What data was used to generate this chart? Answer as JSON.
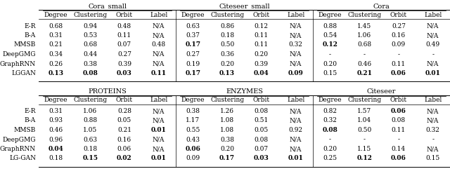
{
  "top_sections": [
    "Cora_small",
    "Citeseer_small",
    "Cora"
  ],
  "bottom_sections": [
    "PROTEINS",
    "ENZYMES",
    "Citeseer"
  ],
  "col_headers": [
    "Degree",
    "Clustering",
    "Orbit",
    "Label"
  ],
  "row_labels": [
    "E-R",
    "B-A",
    "MMSB",
    "DeepGMG",
    "GraphRNN",
    "LGGAN"
  ],
  "row_labels_bottom": [
    "E-R",
    "B-A",
    "MMSB",
    "DeepGMG",
    "GraphRNN",
    "LG-GAN"
  ],
  "top_data": [
    [
      [
        "0.68",
        "0.94",
        "0.48",
        "N/A"
      ],
      [
        "0.31",
        "0.53",
        "0.11",
        "N/A"
      ],
      [
        "0.21",
        "0.68",
        "0.07",
        "0.48"
      ],
      [
        "0.34",
        "0.44",
        "0.27",
        "N/A"
      ],
      [
        "0.26",
        "0.38",
        "0.39",
        "N/A"
      ],
      [
        "0.13",
        "0.08",
        "0.03",
        "0.11"
      ]
    ],
    [
      [
        "0.63",
        "0.86",
        "0.12",
        "N/A"
      ],
      [
        "0.37",
        "0.18",
        "0.11",
        "N/A"
      ],
      [
        "0.17",
        "0.50",
        "0.11",
        "0.32"
      ],
      [
        "0.27",
        "0.36",
        "0.20",
        "N/A"
      ],
      [
        "0.19",
        "0.20",
        "0.39",
        "N/A"
      ],
      [
        "0.17",
        "0.13",
        "0.04",
        "0.09"
      ]
    ],
    [
      [
        "0.88",
        "1.45",
        "0.27",
        "N/A"
      ],
      [
        "0.54",
        "1.06",
        "0.16",
        "N/A"
      ],
      [
        "0.12",
        "0.68",
        "0.09",
        "0.49"
      ],
      [
        "-",
        "-",
        "-",
        "-"
      ],
      [
        "0.20",
        "0.46",
        "0.11",
        "N/A"
      ],
      [
        "0.15",
        "0.21",
        "0.06",
        "0.01"
      ]
    ]
  ],
  "bottom_data": [
    [
      [
        "0.31",
        "1.06",
        "0.28",
        "N/A"
      ],
      [
        "0.93",
        "0.88",
        "0.05",
        "N/A"
      ],
      [
        "0.46",
        "1.05",
        "0.21",
        "0.01"
      ],
      [
        "0.96",
        "0.63",
        "0.16",
        "N/A"
      ],
      [
        "0.04",
        "0.18",
        "0.06",
        "N/A"
      ],
      [
        "0.18",
        "0.15",
        "0.02",
        "0.01"
      ]
    ],
    [
      [
        "0.38",
        "1.26",
        "0.08",
        "N/A"
      ],
      [
        "1.17",
        "1.08",
        "0.51",
        "N/A"
      ],
      [
        "0.55",
        "1.08",
        "0.05",
        "0.92"
      ],
      [
        "0.43",
        "0.38",
        "0.08",
        "N/A"
      ],
      [
        "0.06",
        "0.20",
        "0.07",
        "N/A"
      ],
      [
        "0.09",
        "0.17",
        "0.03",
        "0.01"
      ]
    ],
    [
      [
        "0.82",
        "1.57",
        "0.06",
        "N/A"
      ],
      [
        "0.32",
        "1.04",
        "0.08",
        "N/A"
      ],
      [
        "0.08",
        "0.50",
        "0.11",
        "0.32"
      ],
      [
        "-",
        "-",
        "-",
        "-"
      ],
      [
        "0.20",
        "1.15",
        "0.14",
        "N/A"
      ],
      [
        "0.25",
        "0.12",
        "0.06",
        "0.15"
      ]
    ]
  ],
  "top_bold": [
    [
      [
        false,
        false,
        false,
        false
      ],
      [
        false,
        false,
        false,
        false
      ],
      [
        false,
        false,
        false,
        false
      ],
      [
        false,
        false,
        false,
        false
      ],
      [
        false,
        false,
        false,
        false
      ],
      [
        true,
        true,
        true,
        true
      ]
    ],
    [
      [
        false,
        false,
        false,
        false
      ],
      [
        false,
        false,
        false,
        false
      ],
      [
        true,
        false,
        false,
        false
      ],
      [
        false,
        false,
        false,
        false
      ],
      [
        false,
        false,
        false,
        false
      ],
      [
        true,
        true,
        true,
        true
      ]
    ],
    [
      [
        false,
        false,
        false,
        false
      ],
      [
        false,
        false,
        false,
        false
      ],
      [
        true,
        false,
        false,
        false
      ],
      [
        false,
        false,
        false,
        false
      ],
      [
        false,
        false,
        false,
        false
      ],
      [
        false,
        true,
        true,
        true
      ]
    ]
  ],
  "bottom_bold": [
    [
      [
        false,
        false,
        false,
        false
      ],
      [
        false,
        false,
        false,
        false
      ],
      [
        false,
        false,
        false,
        true
      ],
      [
        false,
        false,
        false,
        false
      ],
      [
        true,
        false,
        false,
        false
      ],
      [
        false,
        true,
        true,
        true
      ]
    ],
    [
      [
        false,
        false,
        false,
        false
      ],
      [
        false,
        false,
        false,
        false
      ],
      [
        false,
        false,
        false,
        false
      ],
      [
        false,
        false,
        false,
        false
      ],
      [
        true,
        false,
        false,
        false
      ],
      [
        false,
        true,
        true,
        true
      ]
    ],
    [
      [
        false,
        false,
        true,
        false
      ],
      [
        false,
        false,
        false,
        false
      ],
      [
        true,
        false,
        false,
        false
      ],
      [
        false,
        false,
        false,
        false
      ],
      [
        false,
        false,
        false,
        false
      ],
      [
        false,
        true,
        true,
        false
      ]
    ]
  ]
}
